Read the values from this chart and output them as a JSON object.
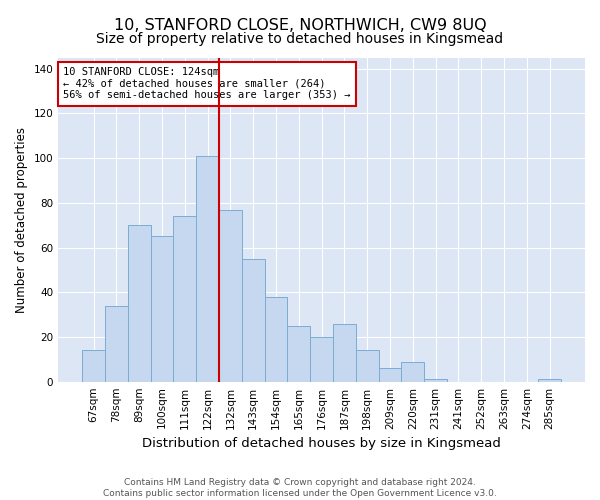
{
  "title": "10, STANFORD CLOSE, NORTHWICH, CW9 8UQ",
  "subtitle": "Size of property relative to detached houses in Kingsmead",
  "xlabel": "Distribution of detached houses by size in Kingsmead",
  "ylabel": "Number of detached properties",
  "categories": [
    "67sqm",
    "78sqm",
    "89sqm",
    "100sqm",
    "111sqm",
    "122sqm",
    "132sqm",
    "143sqm",
    "154sqm",
    "165sqm",
    "176sqm",
    "187sqm",
    "198sqm",
    "209sqm",
    "220sqm",
    "231sqm",
    "241sqm",
    "252sqm",
    "263sqm",
    "274sqm",
    "285sqm"
  ],
  "values": [
    14,
    34,
    70,
    65,
    74,
    101,
    77,
    55,
    38,
    25,
    20,
    26,
    14,
    6,
    9,
    1,
    0,
    0,
    0,
    0,
    1
  ],
  "bar_color": "#c5d8f0",
  "bar_edge_color": "#7aadd4",
  "vline_x": 5.5,
  "vline_color": "#cc0000",
  "annotation_text": "10 STANFORD CLOSE: 124sqm\n← 42% of detached houses are smaller (264)\n56% of semi-detached houses are larger (353) →",
  "annotation_box_color": "white",
  "annotation_edge_color": "#cc0000",
  "ylim": [
    0,
    145
  ],
  "yticks": [
    0,
    20,
    40,
    60,
    80,
    100,
    120,
    140
  ],
  "background_color": "#dce6f5",
  "footer_line1": "Contains HM Land Registry data © Crown copyright and database right 2024.",
  "footer_line2": "Contains public sector information licensed under the Open Government Licence v3.0.",
  "title_fontsize": 11.5,
  "subtitle_fontsize": 10,
  "xlabel_fontsize": 9.5,
  "ylabel_fontsize": 8.5,
  "tick_fontsize": 7.5,
  "annotation_fontsize": 7.5,
  "footer_fontsize": 6.5
}
